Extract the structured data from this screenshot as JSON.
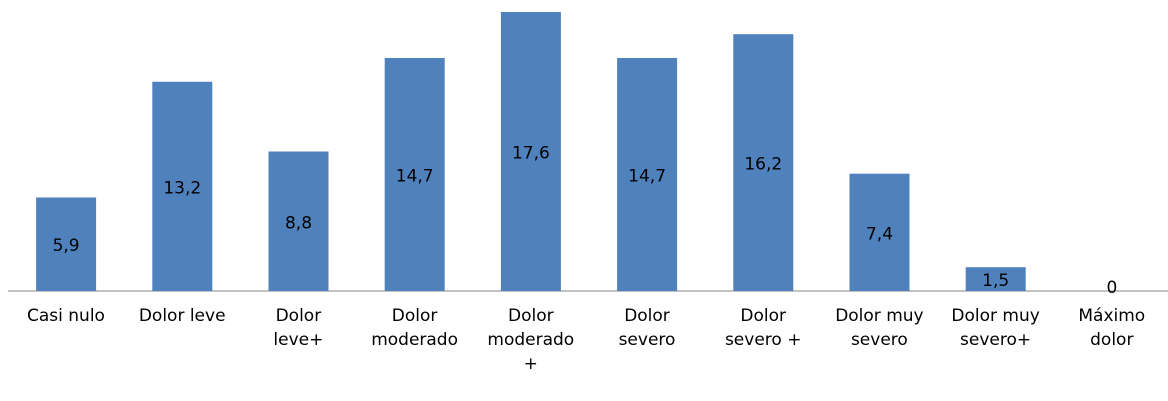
{
  "chart_data": {
    "type": "bar",
    "categories": [
      "Casi nulo",
      "Dolor leve",
      "Dolor\nleve+",
      "Dolor\nmoderado",
      "Dolor\nmoderado\n+",
      "Dolor\nsevero",
      "Dolor\nsevero +",
      "Dolor muy\nsevero",
      "Dolor muy\nsevero+",
      "Máximo\ndolor"
    ],
    "values": [
      5.9,
      13.2,
      8.8,
      14.7,
      17.6,
      14.7,
      16.2,
      7.4,
      1.5,
      0
    ],
    "value_labels": [
      "5,9",
      "13,2",
      "8,8",
      "14,7",
      "17,6",
      "14,7",
      "16,2",
      "7,4",
      "1,5",
      "0"
    ],
    "color": "#4f81bd"
  }
}
